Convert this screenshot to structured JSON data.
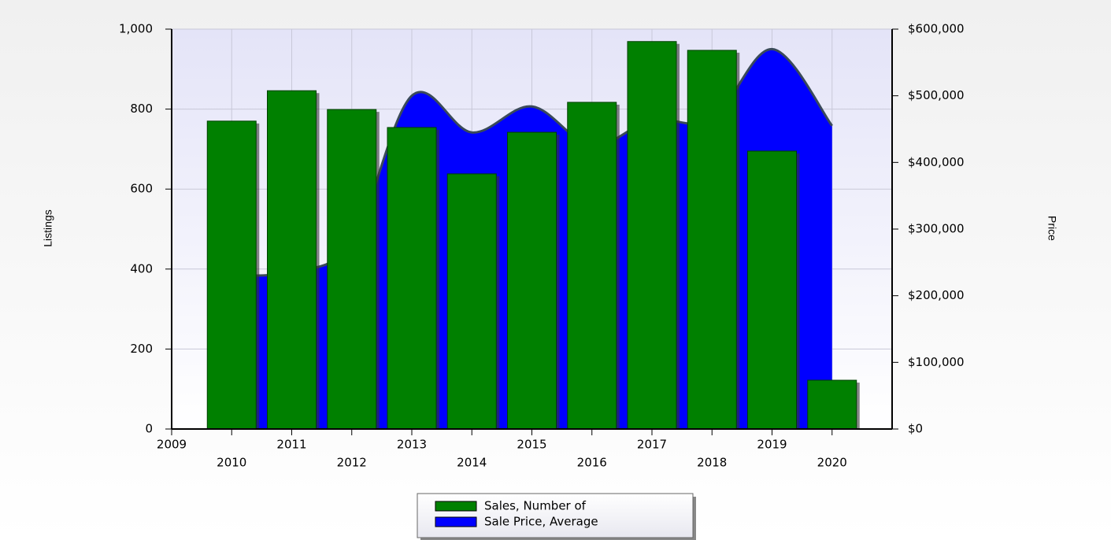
{
  "chart_data": {
    "type": "bar_area",
    "x": [
      2010,
      2011,
      2012,
      2013,
      2014,
      2015,
      2016,
      2017,
      2018,
      2019,
      2020
    ],
    "series": [
      {
        "name": "Sales, Number of",
        "color": "#008000",
        "values": [
          770,
          846,
          799,
          754,
          638,
          742,
          817,
          969,
          947,
          695,
          122
        ]
      },
      {
        "name": "Sale Price, Average",
        "color": "#0000ff",
        "axis": "y2",
        "values": [
          230000,
          236000,
          280000,
          500000,
          445000,
          484000,
          425000,
          464000,
          464000,
          570000,
          455000
        ]
      }
    ],
    "xlim": [
      2009,
      2021
    ],
    "xticks": [
      2009,
      2010,
      2011,
      2012,
      2013,
      2014,
      2015,
      2016,
      2017,
      2018,
      2019,
      2020
    ],
    "ylabel": "Listings",
    "ylim": [
      0,
      1000
    ],
    "yticks": [
      0,
      200,
      400,
      600,
      800,
      {
        "value": 1000,
        "label": "1,000"
      }
    ],
    "y2label": "Price",
    "y2lim": [
      0,
      600000
    ],
    "y2ticks": [
      {
        "value": 0,
        "label": "$0"
      },
      {
        "value": 100000,
        "label": "$100,000"
      },
      {
        "value": 200000,
        "label": "$200,000"
      },
      {
        "value": 300000,
        "label": "$300,000"
      },
      {
        "value": 400000,
        "label": "$400,000"
      },
      {
        "value": 500000,
        "label": "$500,000"
      },
      {
        "value": 600000,
        "label": "$600,000"
      }
    ],
    "grid": true,
    "legend": "bottom"
  }
}
